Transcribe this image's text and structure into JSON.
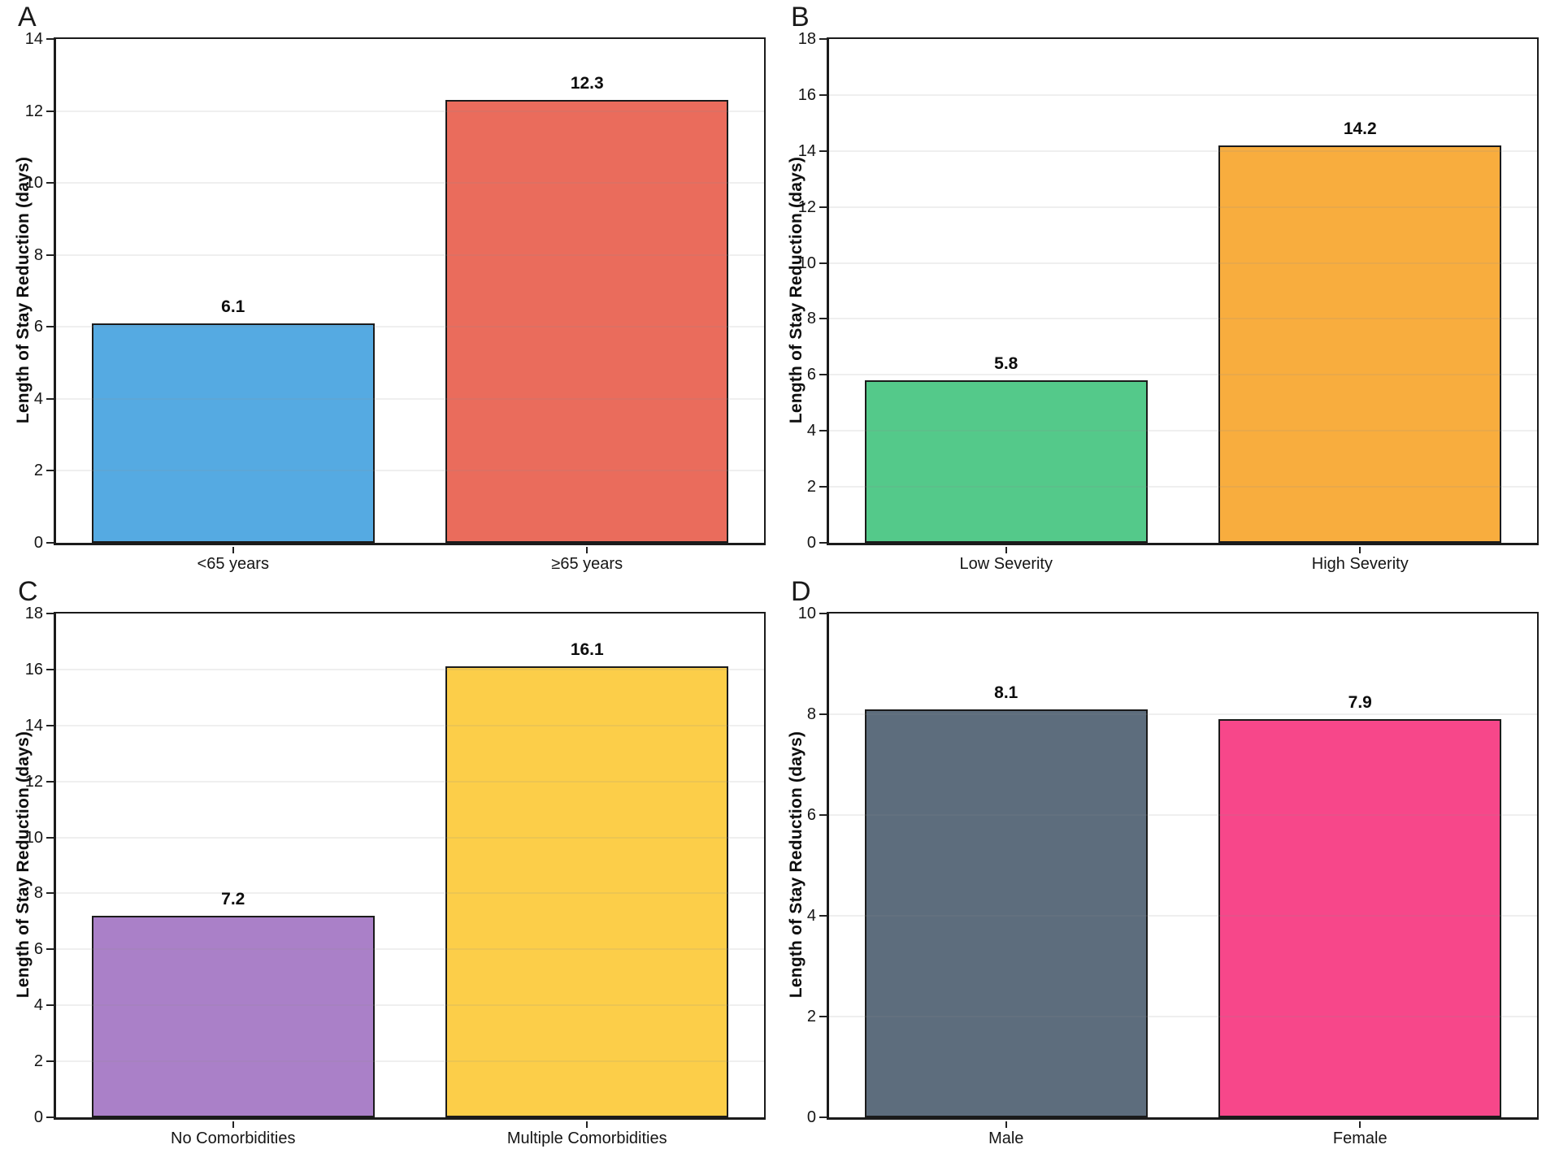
{
  "figure": {
    "background": "#ffffff",
    "axis_color": "#1b1b1b",
    "text_color": "#111111",
    "gridline_color": "#efefef",
    "shared_ylabel": "Length of Stay Reduction (days)"
  },
  "chart_data": [
    {
      "type": "bar",
      "panel_label": "A",
      "title": "",
      "xlabel": "",
      "ylabel": "Length of Stay Reduction (days)",
      "categories": [
        "<65 years",
        "≥65 years"
      ],
      "slugs": [
        "lt-65-years",
        "gte-65-years"
      ],
      "values": [
        6.1,
        12.3
      ],
      "value_labels": [
        "6.1",
        "12.3"
      ],
      "bar_colors": [
        "#55aae2",
        "#ea6c5c"
      ],
      "ylim": [
        0,
        14
      ],
      "yticks": [
        0,
        2,
        4,
        6,
        8,
        10,
        12,
        14
      ],
      "grid": true,
      "legend": false
    },
    {
      "type": "bar",
      "panel_label": "B",
      "title": "",
      "xlabel": "",
      "ylabel": "Length of Stay Reduction (days)",
      "categories": [
        "Low Severity",
        "High Severity"
      ],
      "slugs": [
        "low-severity",
        "high-severity"
      ],
      "values": [
        5.8,
        14.2
      ],
      "value_labels": [
        "5.8",
        "14.2"
      ],
      "bar_colors": [
        "#54c98a",
        "#f8ad3e"
      ],
      "ylim": [
        0,
        18
      ],
      "yticks": [
        0,
        2,
        4,
        6,
        8,
        10,
        12,
        14,
        16,
        18
      ],
      "grid": true,
      "legend": false
    },
    {
      "type": "bar",
      "panel_label": "C",
      "title": "",
      "xlabel": "",
      "ylabel": "Length of Stay Reduction (days)",
      "categories": [
        "No Comorbidities",
        "Multiple Comorbidities"
      ],
      "slugs": [
        "no-comorbidities",
        "multiple-comorbidities"
      ],
      "values": [
        7.2,
        16.1
      ],
      "value_labels": [
        "7.2",
        "16.1"
      ],
      "bar_colors": [
        "#aa80c8",
        "#fcce49"
      ],
      "ylim": [
        0,
        18
      ],
      "yticks": [
        0,
        2,
        4,
        6,
        8,
        10,
        12,
        14,
        16,
        18
      ],
      "grid": true,
      "legend": false
    },
    {
      "type": "bar",
      "panel_label": "D",
      "title": "",
      "xlabel": "",
      "ylabel": "Length of Stay Reduction (days)",
      "categories": [
        "Male",
        "Female"
      ],
      "slugs": [
        "male",
        "female"
      ],
      "values": [
        8.1,
        7.9
      ],
      "value_labels": [
        "8.1",
        "7.9"
      ],
      "bar_colors": [
        "#5d6d7d",
        "#f7478a"
      ],
      "ylim": [
        0,
        10
      ],
      "yticks": [
        0,
        2,
        4,
        6,
        8,
        10
      ],
      "grid": true,
      "legend": false
    }
  ]
}
